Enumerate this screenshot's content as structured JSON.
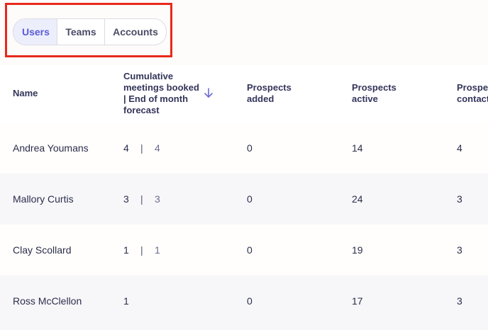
{
  "tabs": [
    {
      "label": "Users",
      "active": true
    },
    {
      "label": "Teams",
      "active": false
    },
    {
      "label": "Accounts",
      "active": false
    }
  ],
  "table": {
    "headers": {
      "name": "Name",
      "meetings": "Cumulative meetings booked | End of month forecast",
      "added": "Prospects added",
      "active": "Prospects active",
      "contacted": "Prospects contacted"
    },
    "separator": "|",
    "rows": [
      {
        "name": "Andrea Youmans",
        "meetings": "4",
        "forecast": "4",
        "added": "0",
        "active": "14",
        "contacted": "4"
      },
      {
        "name": "Mallory Curtis",
        "meetings": "3",
        "forecast": "3",
        "added": "0",
        "active": "24",
        "contacted": "3"
      },
      {
        "name": "Clay Scollard",
        "meetings": "1",
        "forecast": "1",
        "added": "0",
        "active": "19",
        "contacted": "3"
      },
      {
        "name": "Ross McClellon",
        "meetings": "1",
        "forecast": "",
        "added": "0",
        "active": "17",
        "contacted": "3"
      }
    ]
  },
  "colors": {
    "accent": "#5b5bd6",
    "highlight": "#e8291c"
  },
  "icons": {
    "sort": "arrow-down-icon"
  }
}
